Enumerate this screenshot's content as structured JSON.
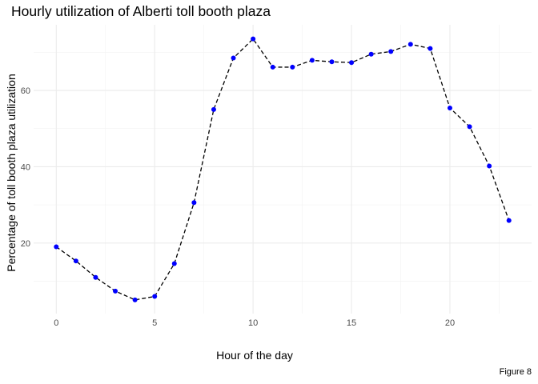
{
  "chart_data": {
    "type": "line",
    "title": "Hourly utilization of Alberti toll booth plaza",
    "xlabel": "Hour of the day",
    "ylabel": "Percentage of toll booth plaza utilization",
    "caption": "Figure 8",
    "x": [
      0,
      1,
      2,
      3,
      4,
      5,
      6,
      7,
      8,
      9,
      10,
      11,
      12,
      13,
      14,
      15,
      16,
      17,
      18,
      19,
      20,
      21,
      22,
      23
    ],
    "series": [
      {
        "values": [
          19.0,
          15.3,
          11.0,
          7.4,
          5.1,
          6.0,
          14.6,
          30.6,
          55.0,
          68.5,
          73.5,
          66.1,
          66.1,
          67.9,
          67.5,
          67.3,
          69.5,
          70.2,
          72.1,
          71.0,
          55.4,
          50.5,
          40.2,
          25.9
        ]
      }
    ],
    "xlim": [
      -1.15,
      24.15
    ],
    "ylim": [
      1.5,
      77.2
    ],
    "xticks": [
      0,
      5,
      10,
      15,
      20
    ],
    "yticks": [
      20,
      40,
      60
    ],
    "xminor": [
      2.5,
      7.5,
      12.5,
      17.5,
      22.5
    ],
    "yminor": [
      10,
      30,
      50,
      70
    ],
    "grid": true,
    "line_style": "dashed",
    "line_color": "#000000",
    "point_color": "#0000ff",
    "grid_color": "#ebebeb"
  }
}
